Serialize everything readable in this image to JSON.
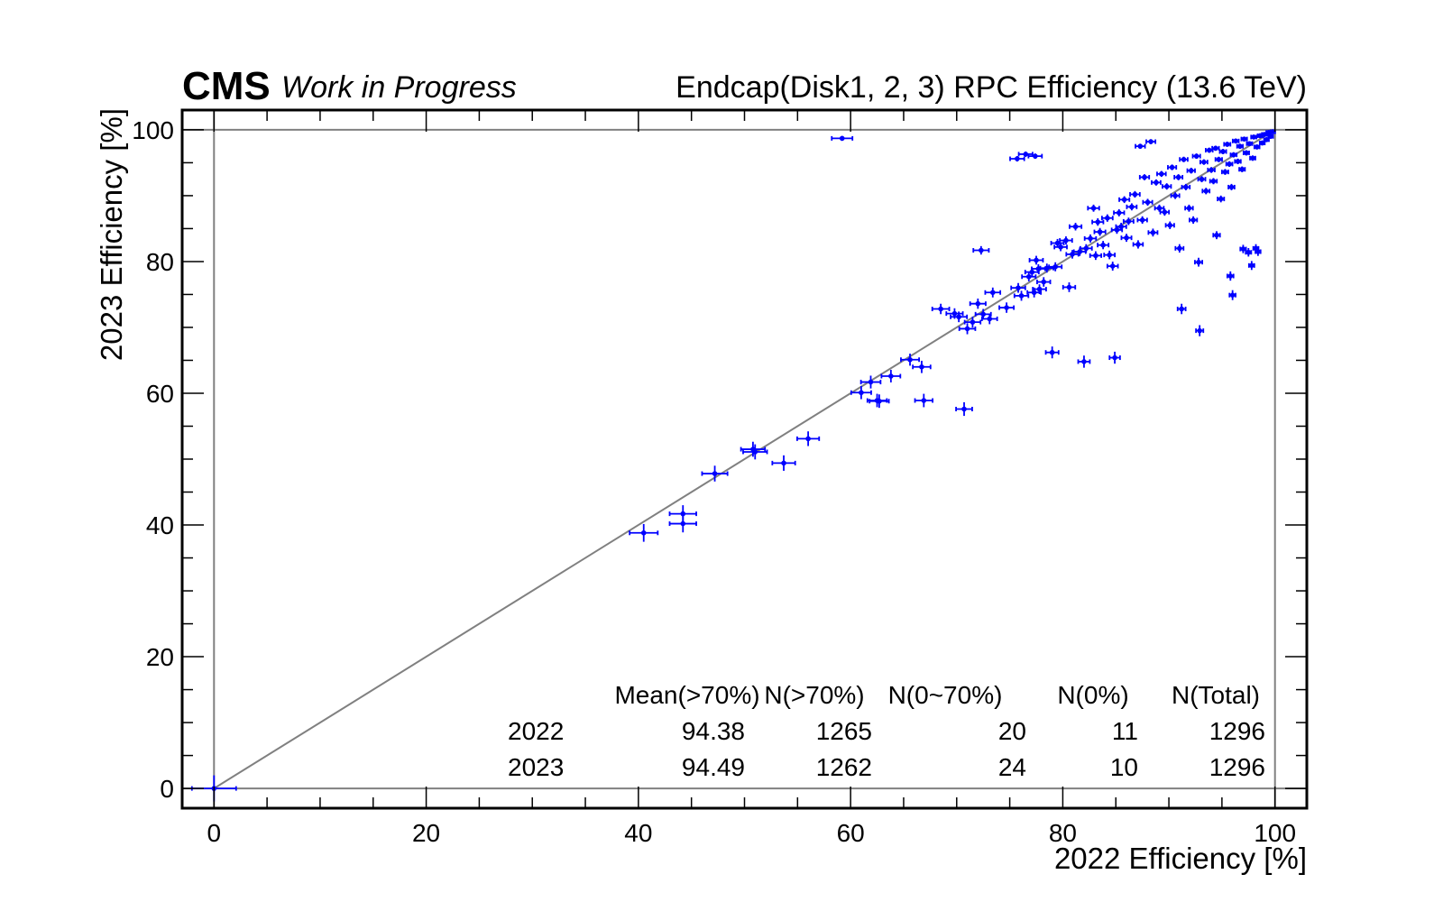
{
  "header": {
    "experiment": "CMS",
    "status": "Work in Progress",
    "title": "Endcap(Disk1, 2, 3) RPC Efficiency (13.6 TeV)"
  },
  "colors": {
    "series": "#0000ff",
    "reference": "#808080",
    "frame": "#000000"
  },
  "chart_data": {
    "type": "scatter",
    "title": "Endcap(Disk1, 2, 3) RPC Efficiency (13.6 TeV)",
    "xlabel": "2022 Efficiency [%]",
    "ylabel": "2023 Efficiency [%]",
    "xlim": [
      -3,
      103
    ],
    "ylim": [
      -3,
      103
    ],
    "x_ticks": [
      "0",
      "20",
      "40",
      "60",
      "80",
      "100"
    ],
    "y_ticks": [
      "0",
      "20",
      "40",
      "60",
      "80",
      "100"
    ],
    "grid": false,
    "reference_lines": [
      "y = x",
      "x = 0",
      "y = 0",
      "x = 100",
      "y = 100"
    ],
    "series": [
      {
        "points": [
          [
            0,
            0
          ],
          [
            40.5,
            38.8
          ],
          [
            44.2,
            41.7
          ],
          [
            44.2,
            40.2
          ],
          [
            47.2,
            47.8
          ],
          [
            50.8,
            51.5
          ],
          [
            51.0,
            51.1
          ],
          [
            53.7,
            49.4
          ],
          [
            56.0,
            53.1
          ],
          [
            59.2,
            98.7
          ],
          [
            61.0,
            60.1
          ],
          [
            61.9,
            61.7
          ],
          [
            62.5,
            58.9
          ],
          [
            62.7,
            58.8
          ],
          [
            63.8,
            62.6
          ],
          [
            65.6,
            65.1
          ],
          [
            66.7,
            64.0
          ],
          [
            66.9,
            58.9
          ],
          [
            68.5,
            72.8
          ],
          [
            69.8,
            72.1
          ],
          [
            70.2,
            71.6
          ],
          [
            70.7,
            57.6
          ],
          [
            71.0,
            69.8
          ],
          [
            71.5,
            70.8
          ],
          [
            72.0,
            73.6
          ],
          [
            72.3,
            81.7
          ],
          [
            72.5,
            72.0
          ],
          [
            73.1,
            71.3
          ],
          [
            73.4,
            75.3
          ],
          [
            74.7,
            73.0
          ],
          [
            75.7,
            95.6
          ],
          [
            75.8,
            76.0
          ],
          [
            76.1,
            74.8
          ],
          [
            76.5,
            96.3
          ],
          [
            76.8,
            77.7
          ],
          [
            77.1,
            78.4
          ],
          [
            77.3,
            75.3
          ],
          [
            77.4,
            96.0
          ],
          [
            77.5,
            80.2
          ],
          [
            77.7,
            78.9
          ],
          [
            77.8,
            75.8
          ],
          [
            78.2,
            76.9
          ],
          [
            78.5,
            79.0
          ],
          [
            79.0,
            66.2
          ],
          [
            79.3,
            79.2
          ],
          [
            79.5,
            82.8
          ],
          [
            79.8,
            82.2
          ],
          [
            80.3,
            83.2
          ],
          [
            80.6,
            76.1
          ],
          [
            80.9,
            81.1
          ],
          [
            81.2,
            85.3
          ],
          [
            81.6,
            81.5
          ],
          [
            82.0,
            64.8
          ],
          [
            82.2,
            82.0
          ],
          [
            82.6,
            83.5
          ],
          [
            82.9,
            88.1
          ],
          [
            83.1,
            80.9
          ],
          [
            83.3,
            86.0
          ],
          [
            83.5,
            84.5
          ],
          [
            83.8,
            82.5
          ],
          [
            84.2,
            86.6
          ],
          [
            84.4,
            81.0
          ],
          [
            84.7,
            79.3
          ],
          [
            84.9,
            65.4
          ],
          [
            85.1,
            84.8
          ],
          [
            85.3,
            87.4
          ],
          [
            85.5,
            85.3
          ],
          [
            85.8,
            89.4
          ],
          [
            86.0,
            83.6
          ],
          [
            86.2,
            86.1
          ],
          [
            86.5,
            88.3
          ],
          [
            86.8,
            90.2
          ],
          [
            87.1,
            82.6
          ],
          [
            87.3,
            97.5
          ],
          [
            87.5,
            86.3
          ],
          [
            87.7,
            92.8
          ],
          [
            88.0,
            89.0
          ],
          [
            88.3,
            98.2
          ],
          [
            88.5,
            84.4
          ],
          [
            88.8,
            92.0
          ],
          [
            89.1,
            88.1
          ],
          [
            89.3,
            93.3
          ],
          [
            89.6,
            87.5
          ],
          [
            89.8,
            91.4
          ],
          [
            90.1,
            85.5
          ],
          [
            90.3,
            94.3
          ],
          [
            90.6,
            90.0
          ],
          [
            90.9,
            92.8
          ],
          [
            91.0,
            82.0
          ],
          [
            91.2,
            72.8
          ],
          [
            91.4,
            95.5
          ],
          [
            91.6,
            91.3
          ],
          [
            91.9,
            88.1
          ],
          [
            92.1,
            93.8
          ],
          [
            92.3,
            86.3
          ],
          [
            92.6,
            96.0
          ],
          [
            92.8,
            79.9
          ],
          [
            92.9,
            69.5
          ],
          [
            93.1,
            92.5
          ],
          [
            93.3,
            95.1
          ],
          [
            93.5,
            90.7
          ],
          [
            93.8,
            96.9
          ],
          [
            94.0,
            93.9
          ],
          [
            94.2,
            92.2
          ],
          [
            94.4,
            97.2
          ],
          [
            94.5,
            84.0
          ],
          [
            94.7,
            95.5
          ],
          [
            94.9,
            89.5
          ],
          [
            95.1,
            96.7
          ],
          [
            95.3,
            93.6
          ],
          [
            95.5,
            97.8
          ],
          [
            95.7,
            94.8
          ],
          [
            95.8,
            77.8
          ],
          [
            95.9,
            91.3
          ],
          [
            96.0,
            74.9
          ],
          [
            96.1,
            96.2
          ],
          [
            96.3,
            98.3
          ],
          [
            96.5,
            95.2
          ],
          [
            96.7,
            97.5
          ],
          [
            96.9,
            94.0
          ],
          [
            97.0,
            81.9
          ],
          [
            97.1,
            98.6
          ],
          [
            97.3,
            96.5
          ],
          [
            97.5,
            81.4
          ],
          [
            97.6,
            97.9
          ],
          [
            97.8,
            79.4
          ],
          [
            97.9,
            95.7
          ],
          [
            98.0,
            98.9
          ],
          [
            98.2,
            82.0
          ],
          [
            98.3,
            97.4
          ],
          [
            98.4,
            81.5
          ],
          [
            98.6,
            99.1
          ],
          [
            98.8,
            98.0
          ],
          [
            99.0,
            99.3
          ],
          [
            99.2,
            98.5
          ],
          [
            99.4,
            99.6
          ],
          [
            99.6,
            99.0
          ],
          [
            99.8,
            99.7
          ]
        ]
      }
    ],
    "stats_table": {
      "headers": [
        "Mean(>70%)",
        "N(>70%)",
        "N(0~70%)",
        "N(0%)",
        "N(Total)"
      ],
      "rows": [
        {
          "year": "2022",
          "values": [
            "94.38",
            "1265",
            "20",
            "11",
            "1296"
          ]
        },
        {
          "year": "2023",
          "values": [
            "94.49",
            "1262",
            "24",
            "10",
            "1296"
          ]
        }
      ]
    }
  }
}
